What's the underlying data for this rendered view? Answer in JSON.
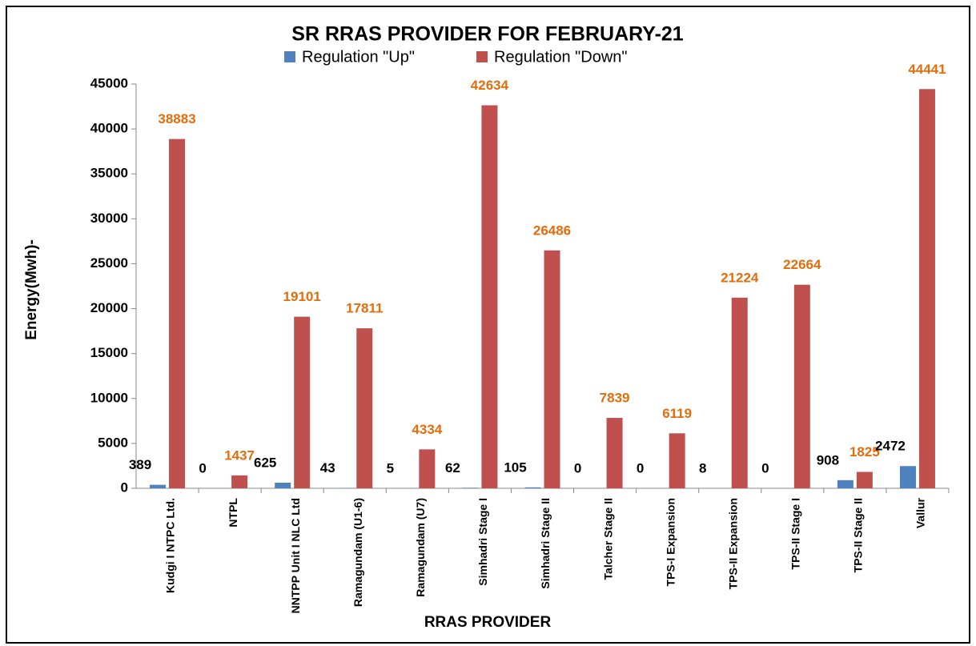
{
  "chart_data": {
    "type": "bar",
    "title": "SR RRAS PROVIDER FOR FEBRUARY-21",
    "x_label": "RRAS PROVIDER",
    "y_label": "Energy(Mwh)-",
    "categories": [
      "Kudgi I NTPC Ltd.",
      "NTPL",
      "NNTPP Unit I NLC Ltd",
      "Ramagundam (U1-6)",
      "Ramagundam (U7)",
      "Simhadri Stage I",
      "Simhadri Stage II",
      "Talcher Stage II",
      "TPS-I Expansion",
      "TPS-II Expansion",
      "TPS-II Stage I",
      "TPS-II Stage II",
      "Vallur"
    ],
    "series": [
      {
        "name": "Regulation \"Up\"",
        "color": "#4f81bd",
        "label_color": "#000000",
        "values": [
          389,
          0,
          625,
          43,
          5,
          62,
          105,
          0,
          0,
          8,
          0,
          908,
          2472
        ]
      },
      {
        "name": "Regulation \"Down\"",
        "color": "#c0504d",
        "label_color": "#e46c0a",
        "values": [
          38883,
          1437,
          19101,
          17811,
          4334,
          42634,
          26486,
          7839,
          6119,
          21224,
          22664,
          1825,
          44441
        ]
      }
    ],
    "ylim": [
      0,
      45000
    ],
    "yticks": [
      0,
      5000,
      10000,
      15000,
      20000,
      25000,
      30000,
      35000,
      40000,
      45000
    ],
    "grid": false,
    "legend": "top"
  }
}
